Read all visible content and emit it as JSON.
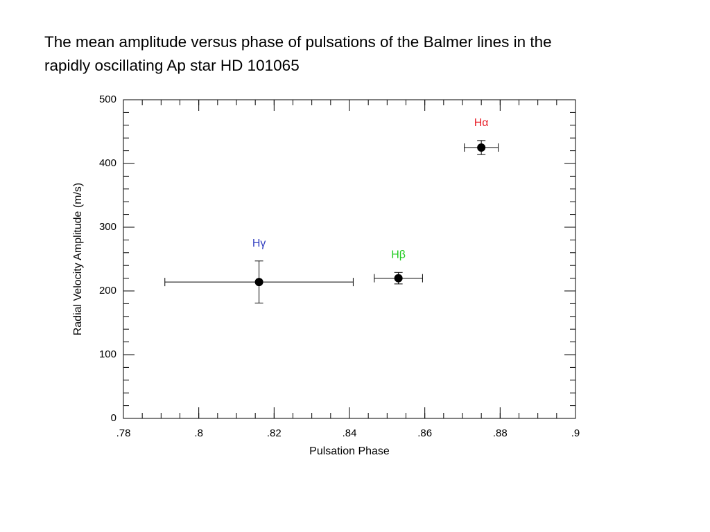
{
  "chart_data": {
    "type": "scatter",
    "title": "The mean amplitude versus phase of pulsations of the Balmer lines in the rapidly oscillating Ap star HD 101065",
    "x_label": "Pulsation Phase",
    "y_label": "Radial Velocity Amplitude (m/s)",
    "xlim": [
      0.78,
      0.9
    ],
    "ylim": [
      0,
      500
    ],
    "xticks": [
      {
        "value": 0.78,
        "label": ".78"
      },
      {
        "value": 0.8,
        "label": ".8"
      },
      {
        "value": 0.82,
        "label": ".82"
      },
      {
        "value": 0.84,
        "label": ".84"
      },
      {
        "value": 0.86,
        "label": ".86"
      },
      {
        "value": 0.88,
        "label": ".88"
      },
      {
        "value": 0.9,
        "label": ".9"
      }
    ],
    "yticks": [
      0,
      100,
      200,
      300,
      400,
      500
    ],
    "x_minor_step": 0.005,
    "y_minor_step": 20,
    "marker_color": "#000000",
    "series": [
      {
        "name": "Hγ",
        "color": "#3340c0",
        "x": [
          0.816
        ],
        "values": [
          214
        ],
        "xerr": [
          0.025
        ],
        "yerr": [
          33
        ]
      },
      {
        "name": "Hβ",
        "color": "#22cc22",
        "x": [
          0.853
        ],
        "values": [
          220
        ],
        "xerr": [
          0.0064
        ],
        "yerr": [
          9
        ]
      },
      {
        "name": "Hα",
        "color": "#e8202a",
        "x": [
          0.875
        ],
        "values": [
          425
        ],
        "xerr": [
          0.0045
        ],
        "yerr": [
          11
        ]
      }
    ]
  }
}
